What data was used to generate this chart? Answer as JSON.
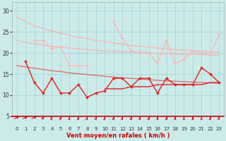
{
  "x": [
    0,
    1,
    2,
    3,
    4,
    5,
    6,
    7,
    8,
    9,
    10,
    11,
    12,
    13,
    14,
    15,
    16,
    17,
    18,
    19,
    20,
    21,
    22,
    23
  ],
  "series": [
    {
      "name": "straight_light1",
      "color": "#f5b8b8",
      "linewidth": 1.0,
      "marker": null,
      "y": [
        28.5,
        27.5,
        26.5,
        25.8,
        25.2,
        24.7,
        24.2,
        23.8,
        23.4,
        23.0,
        22.7,
        22.4,
        22.1,
        21.8,
        21.6,
        21.4,
        21.2,
        21.0,
        20.8,
        20.7,
        20.5,
        20.4,
        20.3,
        20.2
      ]
    },
    {
      "name": "straight_light2",
      "color": "#f5b8b8",
      "linewidth": 1.0,
      "marker": null,
      "y": [
        23.0,
        22.5,
        22.2,
        21.9,
        21.6,
        21.4,
        21.2,
        21.0,
        20.8,
        20.7,
        20.5,
        20.4,
        20.3,
        20.2,
        20.1,
        20.0,
        19.9,
        19.8,
        19.8,
        19.7,
        19.7,
        19.6,
        19.6,
        19.5
      ]
    },
    {
      "name": "wiggly_light_marker",
      "color": "#f5b8b8",
      "linewidth": 0.9,
      "marker": "D",
      "markersize": 2.0,
      "y": [
        null,
        null,
        23.0,
        23.0,
        21.0,
        21.5,
        17.0,
        17.0,
        17.0,
        null,
        null,
        27.5,
        23.5,
        20.5,
        20.0,
        20.0,
        17.5,
        23.0,
        17.5,
        18.5,
        20.5,
        20.0,
        19.5,
        24.5
      ]
    },
    {
      "name": "straight_medium",
      "color": "#e07070",
      "linewidth": 1.0,
      "marker": null,
      "y": [
        17.0,
        16.7,
        16.4,
        16.1,
        15.8,
        15.6,
        15.3,
        15.1,
        14.9,
        14.7,
        14.5,
        14.3,
        14.1,
        14.0,
        13.8,
        13.7,
        13.5,
        13.4,
        13.3,
        13.2,
        13.1,
        13.0,
        12.9,
        12.8
      ]
    },
    {
      "name": "wiggly_dark_marker",
      "color": "#dd2222",
      "linewidth": 1.0,
      "marker": "D",
      "markersize": 2.0,
      "y": [
        null,
        18.0,
        13.0,
        10.5,
        14.0,
        10.5,
        10.5,
        12.5,
        9.5,
        10.5,
        11.0,
        14.0,
        14.0,
        12.0,
        14.0,
        14.0,
        10.5,
        14.0,
        12.5,
        12.5,
        12.5,
        16.5,
        15.0,
        13.0
      ]
    },
    {
      "name": "straight_dark2",
      "color": "#dd2222",
      "linewidth": 1.0,
      "marker": null,
      "y": [
        null,
        null,
        null,
        null,
        null,
        null,
        null,
        null,
        null,
        null,
        11.5,
        11.5,
        11.5,
        12.0,
        12.0,
        12.0,
        12.5,
        12.5,
        12.5,
        12.5,
        12.5,
        12.5,
        13.0,
        13.0
      ]
    }
  ],
  "xlabel": "Vent moyen/en rafales ( km/h )",
  "xlim": [
    -0.5,
    23.5
  ],
  "ylim": [
    5,
    32
  ],
  "yticks": [
    5,
    10,
    15,
    20,
    25,
    30
  ],
  "xticks": [
    0,
    1,
    2,
    3,
    4,
    5,
    6,
    7,
    8,
    9,
    10,
    11,
    12,
    13,
    14,
    15,
    16,
    17,
    18,
    19,
    20,
    21,
    22,
    23
  ],
  "bg_color": "#cceaea",
  "grid_color": "#aad4d4",
  "label_color": "#cc0000",
  "arrow_color": "#cc0000",
  "arrow_angles_deg": [
    45,
    45,
    45,
    70,
    80,
    80,
    85,
    85,
    85,
    85,
    85,
    85,
    85,
    85,
    85,
    85,
    90,
    90,
    90,
    90,
    90,
    90,
    85,
    80
  ]
}
